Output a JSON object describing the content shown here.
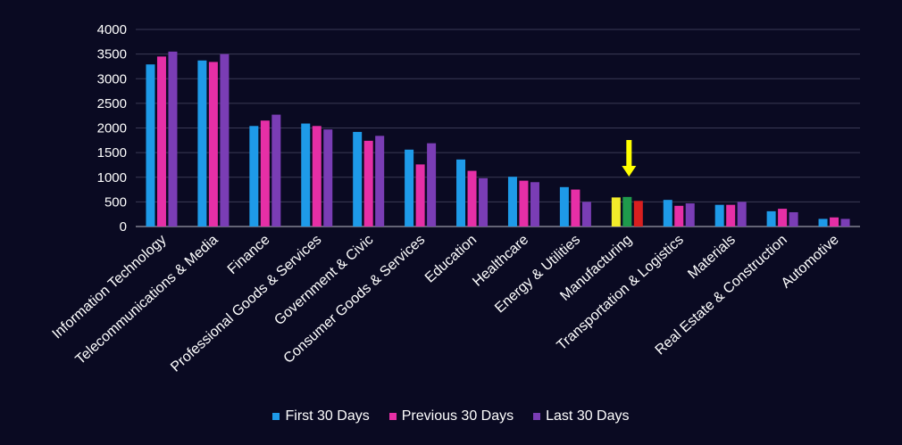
{
  "chart_data": {
    "type": "bar",
    "ylim": [
      0,
      4000
    ],
    "yticks": [
      "0",
      "500",
      "1000",
      "1500",
      "2000",
      "2500",
      "3000",
      "3500",
      "4000"
    ],
    "grid": true,
    "legend_position": "bottom-center",
    "categories": [
      "Information Technology",
      "Telecommunications & Media",
      "Finance",
      "Professional Goods & Services",
      "Government & Civic",
      "Consumer Goods &  Services",
      "Education",
      "Healthcare",
      "Energy & Utilities",
      "Manufacturing",
      "Transportation & Logistics",
      "Materials",
      "Real Estate & Construction",
      "Automotive"
    ],
    "series": [
      {
        "name": "First 30 Days",
        "color": "#1e9ae8",
        "values": [
          3290,
          3370,
          2040,
          2090,
          1920,
          1560,
          1360,
          1010,
          800,
          590,
          540,
          440,
          310,
          155
        ]
      },
      {
        "name": "Previous 30 Days",
        "color": "#e62fa6",
        "values": [
          3450,
          3340,
          2150,
          2040,
          1740,
          1260,
          1130,
          930,
          750,
          600,
          420,
          440,
          360,
          185
        ]
      },
      {
        "name": "Last 30 Days",
        "color": "#7a3db5",
        "values": [
          3550,
          3500,
          2270,
          1970,
          1840,
          1690,
          980,
          900,
          500,
          520,
          470,
          500,
          290,
          155
        ]
      }
    ],
    "highlight": {
      "category": "Manufacturing",
      "colors": [
        "#f2ec2a",
        "#1f9a4c",
        "#d81f1f"
      ],
      "arrow_color": "#ffff00"
    }
  }
}
